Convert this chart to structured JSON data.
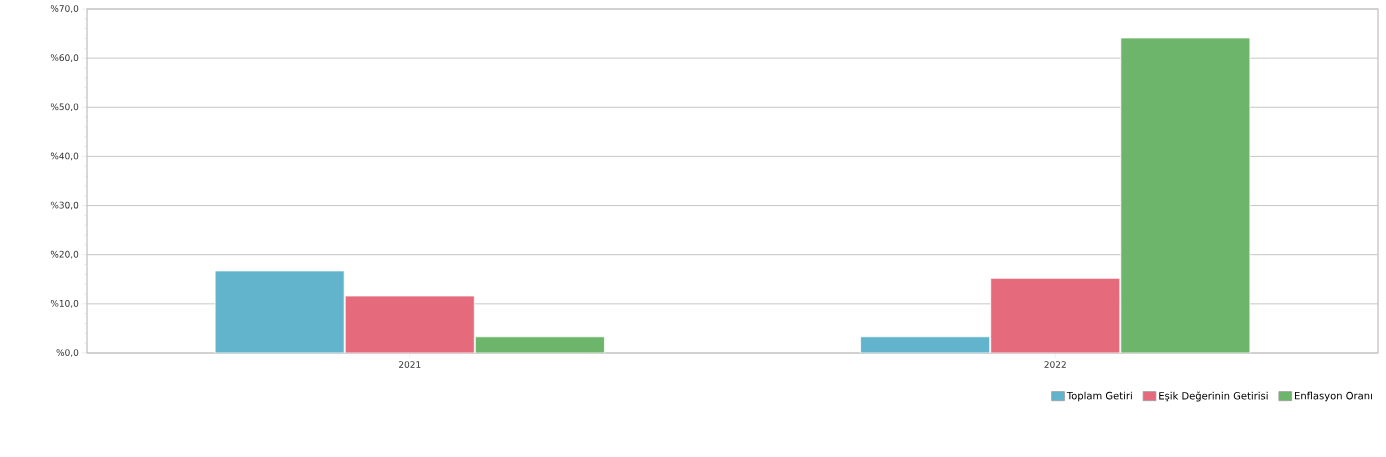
{
  "chart_data": {
    "type": "bar",
    "categories": [
      "2021",
      "2022"
    ],
    "series": [
      {
        "name": "Toplam Getiri",
        "color": "#62b3cc",
        "values": [
          16.7,
          3.3
        ]
      },
      {
        "name": "Eşik Değerinin Getirisi",
        "color": "#e56a7c",
        "values": [
          11.6,
          15.2
        ]
      },
      {
        "name": "Enflasyon Oranı",
        "color": "#6cb56a",
        "values": [
          3.3,
          64.1
        ]
      }
    ],
    "ylim": [
      0,
      70
    ],
    "yticks": [
      {
        "value": 0,
        "label": "%0,0"
      },
      {
        "value": 10,
        "label": "%10,0"
      },
      {
        "value": 20,
        "label": "%20,0"
      },
      {
        "value": 30,
        "label": "%30,0"
      },
      {
        "value": 40,
        "label": "%40,0"
      },
      {
        "value": 50,
        "label": "%50,0"
      },
      {
        "value": 60,
        "label": "%60,0"
      },
      {
        "value": 70,
        "label": "%70,0"
      }
    ],
    "grid": "y",
    "legend": "bottom right"
  }
}
